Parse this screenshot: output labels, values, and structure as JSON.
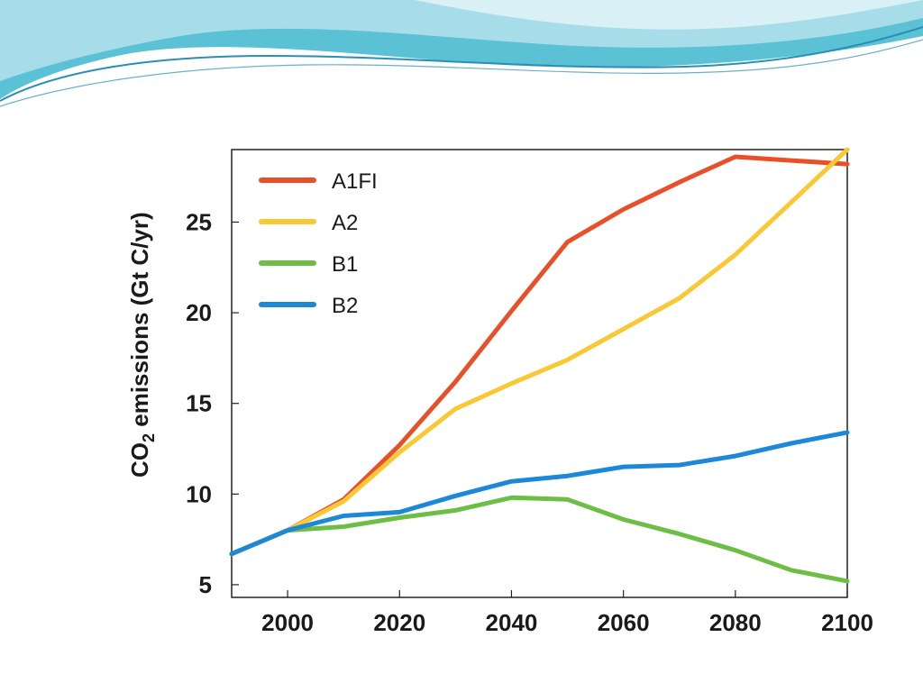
{
  "slide": {
    "wave_colors": [
      "#5bc2d6",
      "#a7dde8",
      "#2b8fb3",
      "#d9f1f6"
    ]
  },
  "chart_data": {
    "type": "line",
    "ylabel": {
      "prefix": "CO",
      "subscript": "2",
      "suffix": " emissions (Gt C/yr)"
    },
    "xlabel": "",
    "title": "",
    "xlim": [
      1990,
      2100
    ],
    "ylim": [
      4.3,
      29
    ],
    "xticks": [
      2000,
      2020,
      2040,
      2060,
      2080,
      2100
    ],
    "yticks": [
      5,
      10,
      15,
      20,
      25
    ],
    "legend_position": "top-left",
    "grid": false,
    "series": [
      {
        "name": "A1FI",
        "color": "#e8502a",
        "x": [
          1990,
          2000,
          2010,
          2020,
          2030,
          2040,
          2050,
          2060,
          2070,
          2080,
          2090,
          2100
        ],
        "values": [
          6.7,
          8.0,
          9.7,
          12.7,
          16.2,
          20.1,
          23.9,
          25.7,
          27.2,
          28.6,
          28.4,
          28.2
        ]
      },
      {
        "name": "A2",
        "color": "#f8c934",
        "x": [
          1990,
          2000,
          2010,
          2020,
          2030,
          2040,
          2050,
          2060,
          2070,
          2080,
          2090,
          2100
        ],
        "values": [
          6.7,
          8.0,
          9.6,
          12.3,
          14.7,
          16.1,
          17.4,
          19.1,
          20.8,
          23.2,
          26.1,
          29.0
        ]
      },
      {
        "name": "B1",
        "color": "#6cbe45",
        "x": [
          1990,
          2000,
          2010,
          2020,
          2030,
          2040,
          2050,
          2060,
          2070,
          2080,
          2090,
          2100
        ],
        "values": [
          6.7,
          8.0,
          8.2,
          8.7,
          9.1,
          9.8,
          9.7,
          8.6,
          7.8,
          6.9,
          5.8,
          5.2
        ]
      },
      {
        "name": "B2",
        "color": "#1e88d8",
        "x": [
          1990,
          2000,
          2010,
          2020,
          2030,
          2040,
          2050,
          2060,
          2070,
          2080,
          2090,
          2100
        ],
        "values": [
          6.7,
          8.0,
          8.8,
          9.0,
          9.9,
          10.7,
          11.0,
          11.5,
          11.6,
          12.1,
          12.8,
          13.4
        ]
      }
    ]
  }
}
